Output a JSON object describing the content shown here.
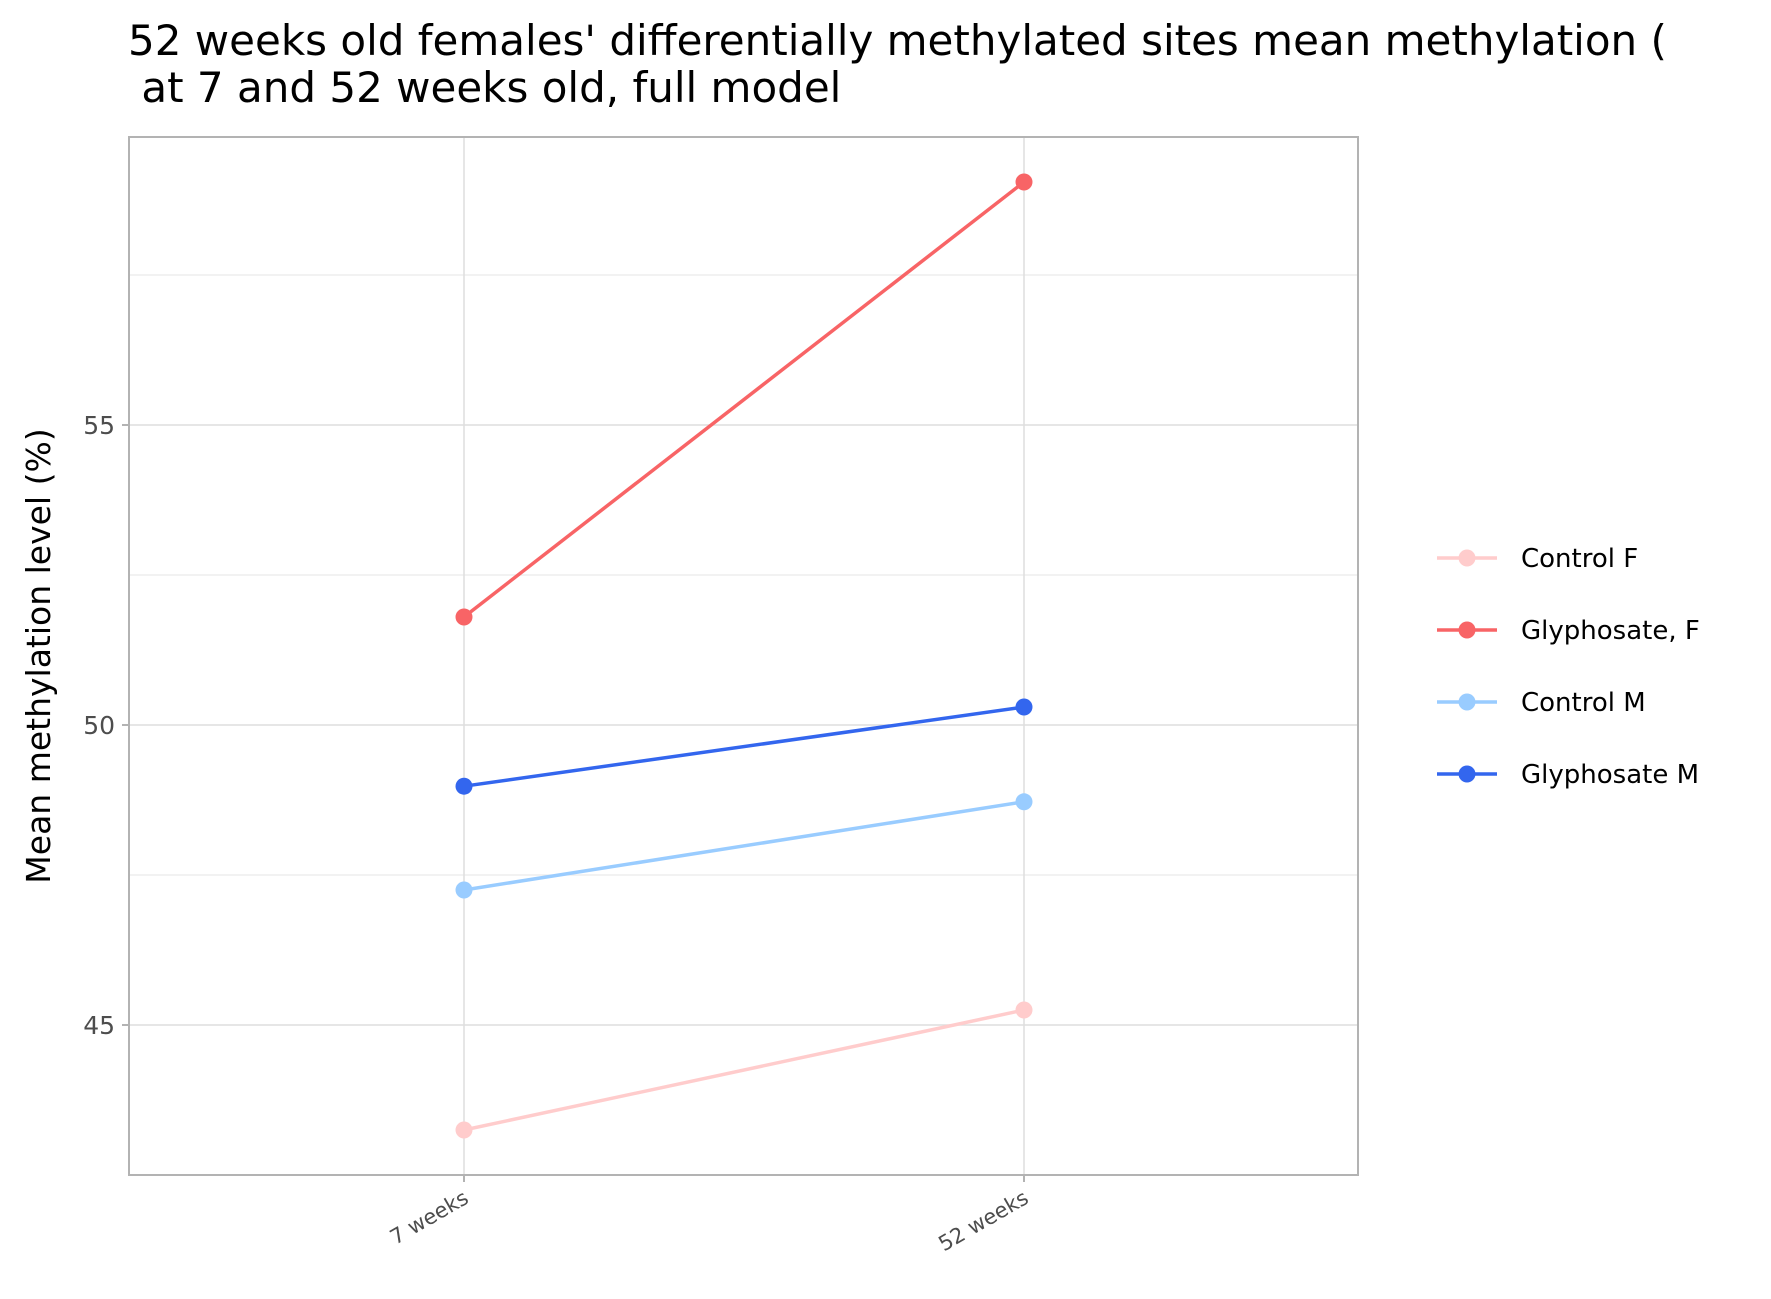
{
  "chart_data": {
    "type": "line",
    "title": "52 weeks old females' differentially methylated sites mean methylation (",
    "subtitle": " at 7 and 52 weeks old, full model",
    "xlabel": "",
    "ylabel": "Mean methylation level (%)",
    "categories": [
      "7 weeks",
      "52 weeks"
    ],
    "ylim": [
      42.5,
      59.8
    ],
    "yticks": [
      45,
      50,
      55
    ],
    "ytick_labels": [
      "45",
      "50",
      "55"
    ],
    "grid": true,
    "legend_position": "right",
    "series": [
      {
        "name": "Control F",
        "color": "#ffcccc",
        "values": [
          43.25,
          45.25
        ]
      },
      {
        "name": "Glyphosate, F",
        "color": "#f86466",
        "values": [
          51.8,
          59.05
        ]
      },
      {
        "name": "Control M",
        "color": "#99ccff",
        "values": [
          47.25,
          48.72
        ]
      },
      {
        "name": "Glyphosate M",
        "color": "#3366ee",
        "values": [
          48.98,
          50.3
        ]
      }
    ]
  }
}
